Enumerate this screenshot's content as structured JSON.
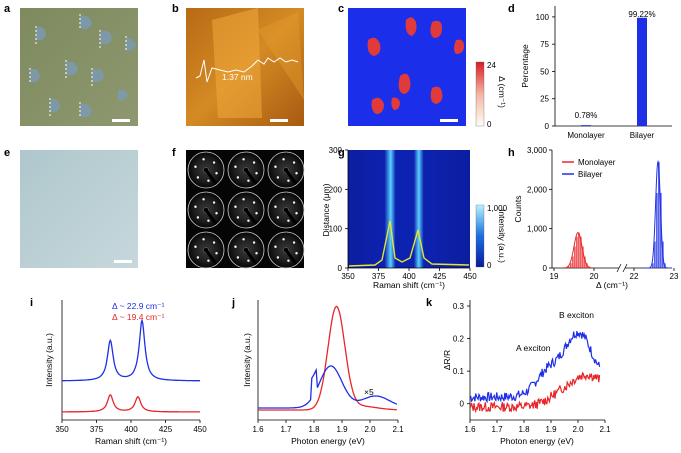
{
  "figure": {
    "panel_labels": [
      "a",
      "b",
      "c",
      "d",
      "e",
      "f",
      "g",
      "h",
      "i",
      "j",
      "k"
    ],
    "colors": {
      "blue": "#1f2fe6",
      "red": "#e8262a",
      "yellow": "#e6e62a"
    }
  },
  "panel_b": {
    "step_label": "1.37 nm"
  },
  "panel_c": {
    "colorbar_max": "24",
    "colorbar_min": "0",
    "colorbar_label": "Δ (cm⁻¹)"
  },
  "panel_g": {
    "colorbar_max": "1,000",
    "colorbar_min": "0",
    "colorbar_label": "Intensity (a.u.)"
  },
  "chart_data": [
    {
      "panel": "d",
      "type": "bar",
      "categories": [
        "Monolayer",
        "Bilayer"
      ],
      "values": [
        0.78,
        99.22
      ],
      "value_labels": [
        "0.78%",
        "99.22%"
      ],
      "xlabel": "",
      "ylabel": "Percentage",
      "ylim": [
        0,
        110
      ],
      "yticks": [
        "0",
        "25",
        "50",
        "75",
        "100"
      ]
    },
    {
      "panel": "g",
      "type": "heatmap",
      "xlabel": "Raman shift (cm⁻¹)",
      "ylabel": "Distance (μm)",
      "xlim": [
        350,
        450
      ],
      "ylim": [
        0,
        300
      ],
      "xticks": [
        "350",
        "375",
        "400",
        "425",
        "450"
      ],
      "yticks": [
        "0",
        "100",
        "200",
        "300"
      ],
      "peaks_cm": [
        385.5,
        408.4
      ]
    },
    {
      "panel": "h",
      "type": "bar",
      "xlabel": "Δ (cm⁻¹)",
      "ylabel": "Counts",
      "ylim": [
        0,
        3000
      ],
      "yticks": [
        "0",
        "1,000",
        "2,000",
        "3,000"
      ],
      "xticks": [
        "19",
        "20",
        "22",
        "23"
      ],
      "series": [
        {
          "name": "Monolayer",
          "center": 19.6,
          "peak": 900
        },
        {
          "name": "Bilayer",
          "center": 22.6,
          "peak": 2700
        }
      ]
    },
    {
      "panel": "i",
      "type": "line",
      "xlabel": "Raman shift (cm⁻¹)",
      "ylabel": "Intensity (a.u.)",
      "xlim": [
        350,
        450
      ],
      "xticks": [
        "350",
        "375",
        "400",
        "425",
        "450"
      ],
      "series": [
        {
          "name": "Δ ~ 22.9 cm⁻¹",
          "peaks": [
            385,
            408
          ]
        },
        {
          "name": "Δ ~ 19.4 cm⁻¹",
          "peaks": [
            385,
            405
          ]
        }
      ]
    },
    {
      "panel": "j",
      "type": "line",
      "xlabel": "Photon energy (eV)",
      "ylabel": "Intensity (a.u.)",
      "xlim": [
        1.6,
        2.1
      ],
      "xticks": [
        "1.6",
        "1.7",
        "1.8",
        "1.9",
        "2.0",
        "2.1"
      ],
      "annotation": "×5",
      "series": [
        {
          "peak_eV": 1.86
        },
        {
          "peak_eV": 1.88
        }
      ]
    },
    {
      "panel": "k",
      "type": "line",
      "xlabel": "Photon energy (eV)",
      "ylabel": "ΔR/R",
      "xlim": [
        1.6,
        2.1
      ],
      "ylim": [
        -0.05,
        0.3
      ],
      "xticks": [
        "1.6",
        "1.7",
        "1.8",
        "1.9",
        "2.0",
        "2.1"
      ],
      "yticks": [
        "0",
        "0.1",
        "0.2",
        "0.3"
      ],
      "annotations": [
        "A exciton",
        "B exciton"
      ]
    }
  ]
}
